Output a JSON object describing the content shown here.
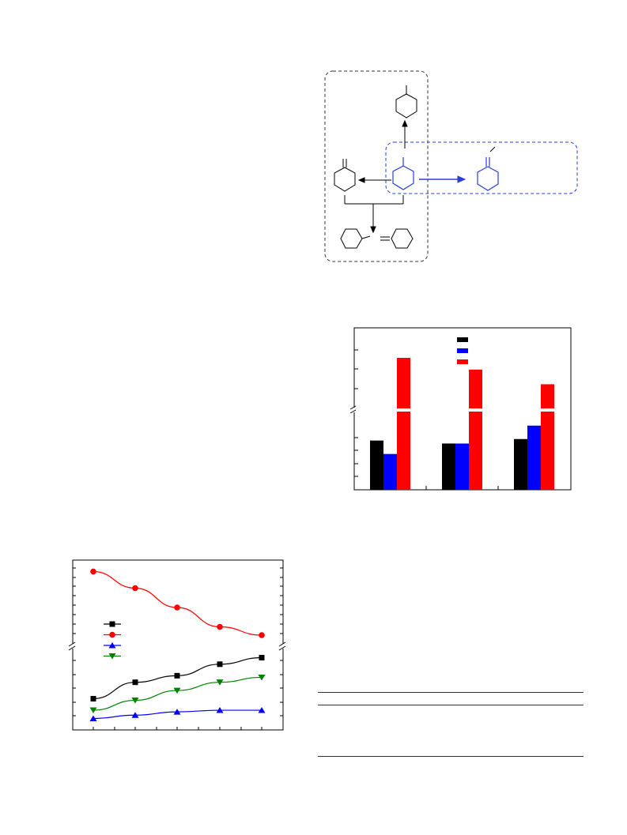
{
  "scheme": {
    "molecules": [
      "methylcyclohexane-top",
      "methylcyclohexane-center",
      "methylenecyclohexane-left",
      "methylenecyclohexane-right",
      "cyclohexyl-dimer",
      "methylenecyclohexane-dimer"
    ],
    "colors": {
      "main": "#000000",
      "highlight": "#2a3fd6"
    }
  },
  "chart_data": [
    {
      "type": "bar",
      "title": "",
      "xlabel": "",
      "ylabel": "",
      "categories": [
        "",
        "",
        ""
      ],
      "y_axis_break": true,
      "series": [
        {
          "color": "#000000",
          "values": [
            0.33,
            0.31,
            0.34
          ]
        },
        {
          "color": "#0000ff",
          "values": [
            0.24,
            0.31,
            0.43
          ]
        },
        {
          "color": "#ff0000",
          "values": [
            0.83,
            0.75,
            0.65
          ]
        }
      ],
      "legend": {
        "placement": "top-center",
        "entries": [
          "",
          "",
          ""
        ]
      },
      "grid": false
    },
    {
      "type": "line",
      "title": "",
      "xlabel": "",
      "ylabel": "",
      "x": [
        1,
        2,
        3,
        4,
        5
      ],
      "y_axis_break": true,
      "series": [
        {
          "color": "#000000",
          "marker": "square",
          "values": [
            0.19,
            0.29,
            0.33,
            0.4,
            0.44
          ]
        },
        {
          "color": "#ff0000",
          "marker": "circle",
          "values": [
            0.97,
            0.91,
            0.84,
            0.77,
            0.74
          ]
        },
        {
          "color": "#0000ff",
          "marker": "triangle-up",
          "values": [
            0.07,
            0.09,
            0.11,
            0.12,
            0.12
          ]
        },
        {
          "color": "#008000",
          "marker": "triangle-down",
          "values": [
            0.12,
            0.18,
            0.24,
            0.29,
            0.32
          ]
        }
      ],
      "legend": {
        "placement": "middle-left",
        "entries": [
          "",
          "",
          "",
          ""
        ]
      },
      "grid": false
    }
  ],
  "table": {
    "rows": 0,
    "rules": 3
  }
}
